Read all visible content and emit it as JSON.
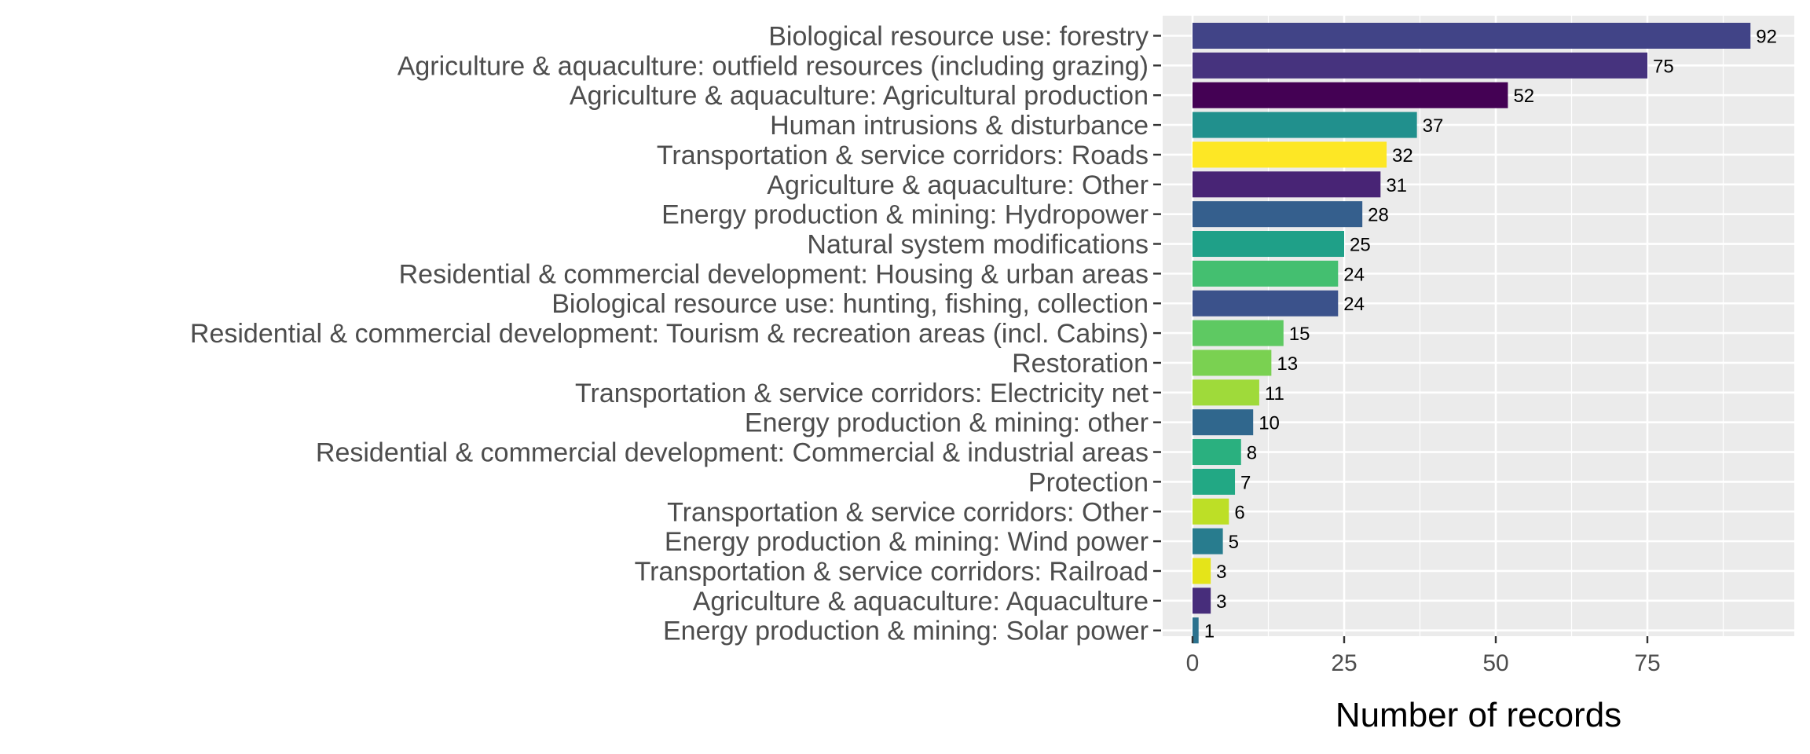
{
  "chart_data": {
    "type": "bar",
    "orientation": "horizontal",
    "title": "",
    "xlabel": "Number of records",
    "ylabel": "",
    "xlim": [
      0,
      97
    ],
    "x_ticks": [
      0,
      25,
      50,
      75
    ],
    "grid": true,
    "legend": "none",
    "panel_background": "#ebebeb",
    "categories": [
      "Biological resource use: forestry",
      "Agriculture & aquaculture: outfield resources (including grazing)",
      "Agriculture & aquaculture: Agricultural production",
      "Human intrusions & disturbance",
      "Transportation & service corridors: Roads",
      "Agriculture & aquaculture: Other",
      "Energy production & mining: Hydropower",
      "Natural system modifications",
      "Residential & commercial development: Housing & urban areas",
      "Biological resource use: hunting, fishing, collection",
      "Residential & commercial development: Tourism & recreation areas (incl. Cabins)",
      "Restoration",
      "Transportation & service corridors: Electricity net",
      "Energy production & mining: other",
      "Residential & commercial development: Commercial & industrial areas",
      "Protection",
      "Transportation & service corridors: Other",
      "Energy production & mining: Wind power",
      "Transportation & service corridors: Railroad",
      "Agriculture & aquaculture: Aquaculture",
      "Energy production & mining: Solar power"
    ],
    "values": [
      92,
      75,
      52,
      37,
      32,
      31,
      28,
      25,
      24,
      24,
      15,
      13,
      11,
      10,
      8,
      7,
      6,
      5,
      3,
      3,
      1
    ],
    "colors": [
      "#414487",
      "#46337e",
      "#440154",
      "#21908d",
      "#fde725",
      "#482475",
      "#355f8d",
      "#1fa088",
      "#44bf70",
      "#3b528b",
      "#5ec962",
      "#7ad151",
      "#9fda3a",
      "#30678d",
      "#2ab07f",
      "#22a884",
      "#bddf26",
      "#287c8e",
      "#e5e419",
      "#472d7b",
      "#2c728e"
    ]
  }
}
